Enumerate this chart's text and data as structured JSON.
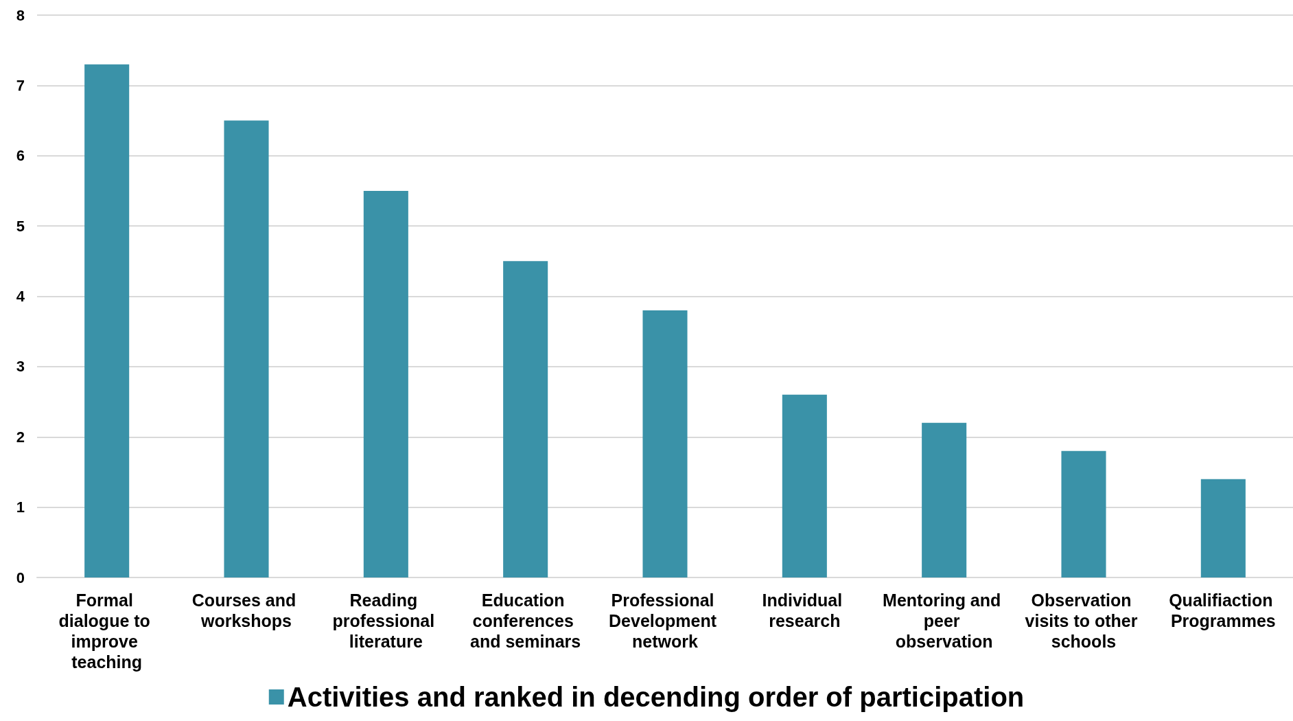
{
  "chart_data": {
    "type": "bar",
    "categories": [
      "Formal dialogue to improve teaching",
      "Courses and workshops",
      "Reading professional literature",
      "Education conferences and seminars",
      "Professional Development network",
      "Individual research",
      "Mentoring and peer observation",
      "Observation visits to other schools",
      "Qualifiaction Programmes"
    ],
    "series": [
      {
        "name": "Activities and ranked in decending order of participation",
        "color": "#3a92a8",
        "values": [
          7.3,
          6.5,
          5.5,
          4.5,
          3.8,
          2.6,
          2.2,
          1.8,
          1.4
        ]
      }
    ],
    "ylim": [
      0,
      8
    ],
    "yticks": [
      0,
      1,
      2,
      3,
      4,
      5,
      6,
      7,
      8
    ],
    "grid": "y",
    "legend": "bottom"
  }
}
